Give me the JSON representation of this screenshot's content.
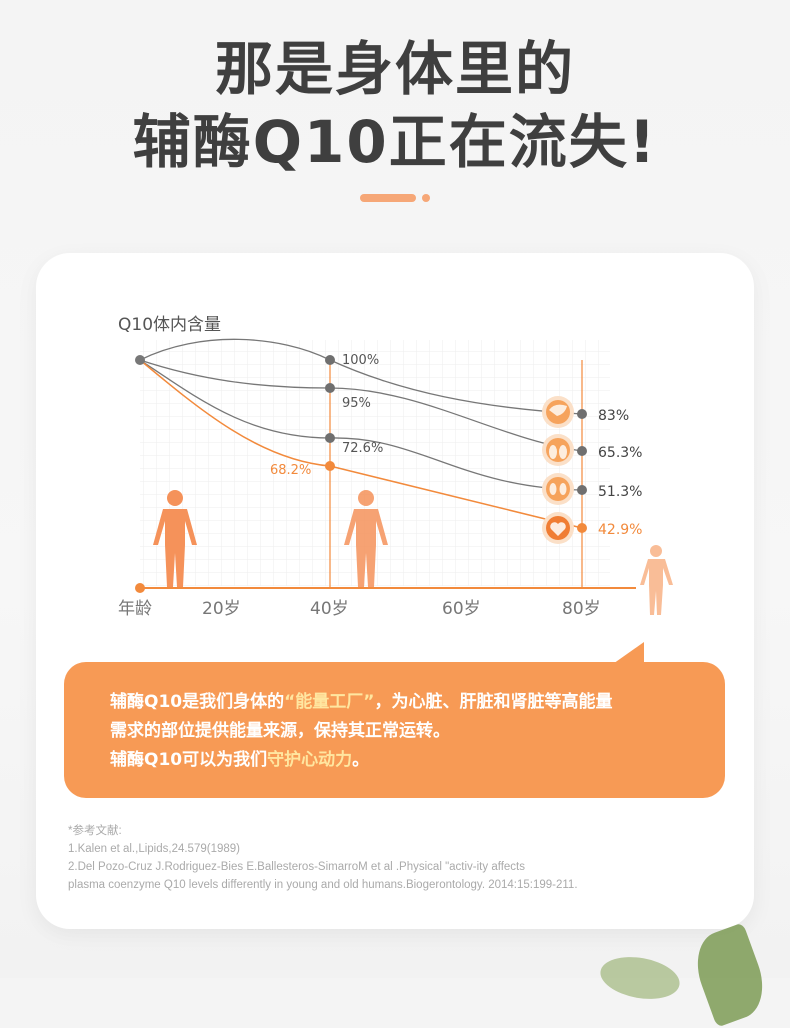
{
  "headline": {
    "line1": "那是身体里的",
    "line2": "辅酶Q10正在流失!"
  },
  "chart_data": {
    "type": "line",
    "title": "Q10体内含量",
    "xlabel": "年龄",
    "categories": [
      "20岁",
      "40岁",
      "60岁",
      "80岁"
    ],
    "series": [
      {
        "organ": "liver",
        "icon": "liver-icon",
        "values": {
          "20岁": null,
          "40岁": 100,
          "80岁": 83
        },
        "labels": [
          "100%",
          "83%"
        ]
      },
      {
        "organ": "lung",
        "icon": "lung-icon",
        "values": {
          "40岁": 95,
          "80岁": 65.3
        },
        "labels": [
          "95%",
          "65.3%"
        ]
      },
      {
        "organ": "kidney",
        "icon": "kidney-icon",
        "values": {
          "40岁": 72.6,
          "80岁": 51.3
        },
        "labels": [
          "72.6%",
          "51.3%"
        ]
      },
      {
        "organ": "heart",
        "icon": "heart-icon",
        "highlight": true,
        "values": {
          "40岁": 68.2,
          "80岁": 42.9
        },
        "labels": [
          "68.2%",
          "42.9%"
        ]
      }
    ],
    "colors": {
      "gray": "#707070",
      "orange": "#f28a3c",
      "body": "#f5925a"
    }
  },
  "info": {
    "p1a": "辅酶Q10是我们身体的",
    "p1b": "“能量工厂”",
    "p1c": "，为心脏、肝脏和肾脏等高能量",
    "p2": "需求的部位提供能量来源，保持其正常运转。",
    "p3a": "辅酶Q10可以为我们",
    "p3b": "守护心动力",
    "p3c": "。"
  },
  "refs": {
    "title": "*参考文献:",
    "r1": "1.Kalen et al.,Lipids,24.579(1989)",
    "r2": "2.Del Pozo-Cruz J.Rodriguez-Bies E.Ballesteros-SimarroM et al .Physical \"activ-ity affects",
    "r3": "plasma coenzyme Q10 levels differently in young and old humans.Biogerontology. 2014:15:199-211."
  }
}
